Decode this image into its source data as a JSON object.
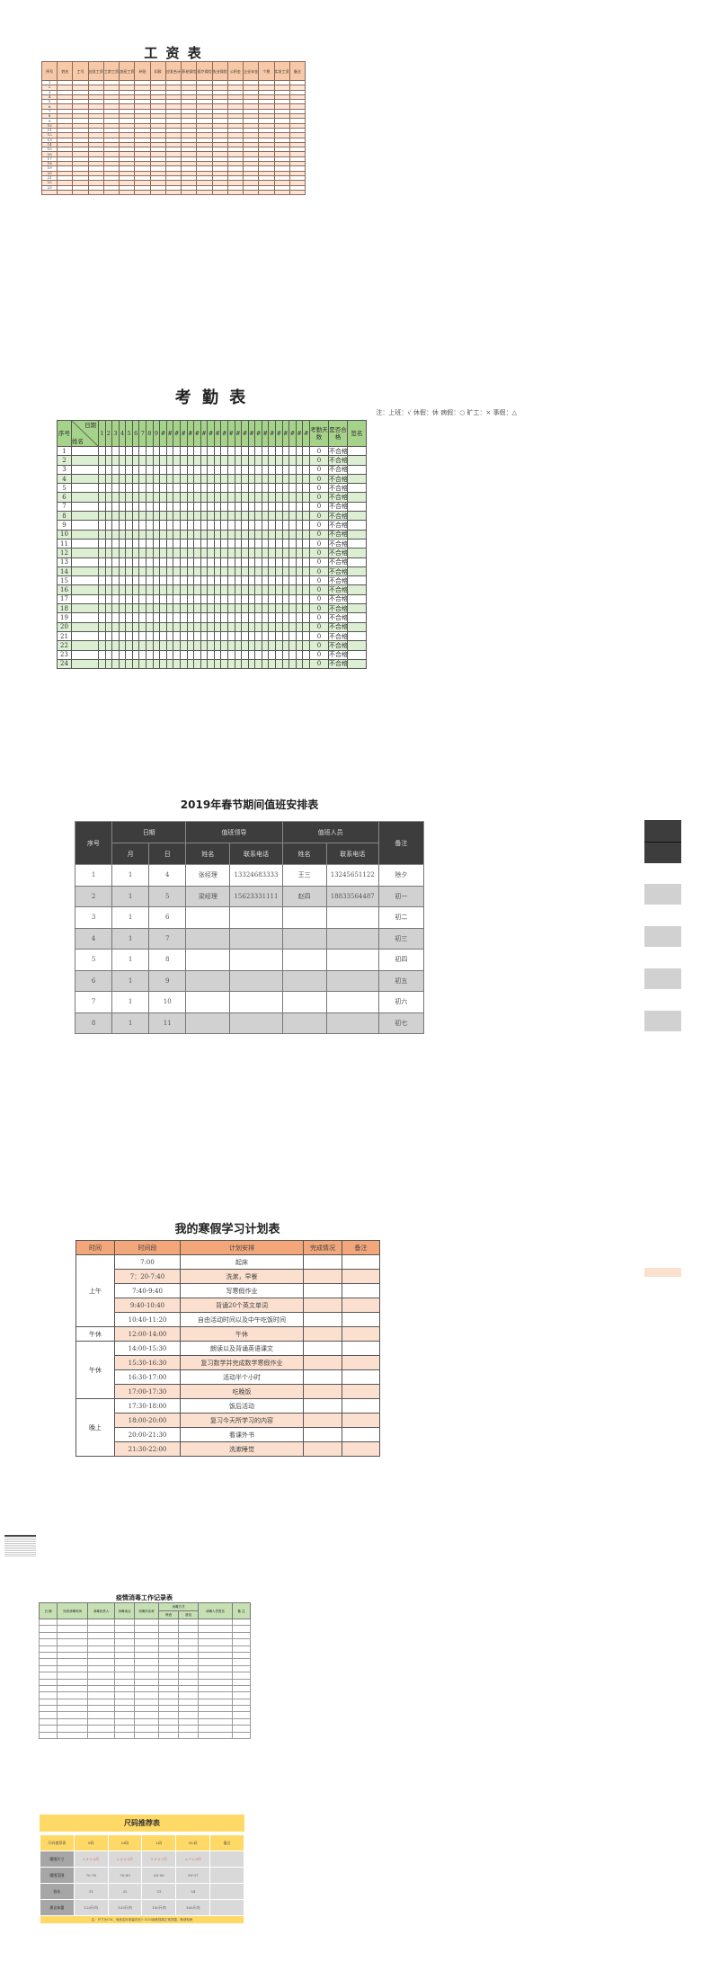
{
  "salary": {
    "title": "工 资 表",
    "headers": [
      "序号",
      "姓名",
      "工号",
      "应发工资",
      "工龄工资",
      "加班工资",
      "补贴",
      "扣款",
      "应发合计",
      "养老保险",
      "医疗保险",
      "失业保险",
      "公积金",
      "企业年金",
      "个税",
      "实发工资",
      "备注"
    ],
    "rows": [
      "1",
      "2",
      "3",
      "4",
      "5",
      "6",
      "7",
      "8",
      "9",
      "10",
      "11",
      "12",
      "13",
      "14",
      "15",
      "16",
      "17",
      "18",
      "19",
      "20",
      "21",
      "22",
      "23",
      ""
    ]
  },
  "attendance": {
    "title": "考 勤 表",
    "note": "注：上班：√ 休假：休 病假：○ 旷工：× 事假：△",
    "header_seq": "序号",
    "header_date": "日期",
    "header_name": "姓名",
    "days": [
      "1",
      "2",
      "3",
      "4",
      "5",
      "6",
      "7",
      "8",
      "9",
      "#",
      "#",
      "#",
      "#",
      "#",
      "#",
      "#",
      "#",
      "#",
      "#",
      "#",
      "#",
      "#",
      "#",
      "#",
      "#",
      "#",
      "#",
      "#",
      "#",
      "#",
      "#"
    ],
    "header_days_count": "考勤天数",
    "header_pass": "是否合格",
    "header_sign": "签名",
    "rows": [
      "1",
      "2",
      "3",
      "4",
      "5",
      "6",
      "7",
      "8",
      "9",
      "10",
      "11",
      "12",
      "13",
      "14",
      "15",
      "16",
      "17",
      "18",
      "19",
      "20",
      "21",
      "22",
      "23",
      "24"
    ],
    "days_count_value": "0",
    "pass_value": "不合格"
  },
  "duty": {
    "title": "2019年春节期间值班安排表",
    "headers": {
      "seq": "序号",
      "date": "日期",
      "leader": "值班领导",
      "staff": "值班人员",
      "note": "备注",
      "month": "月",
      "day": "日",
      "name": "姓名",
      "phone": "联系电话"
    },
    "rows": [
      [
        "1",
        "1",
        "4",
        "张经理",
        "13324683333",
        "王三",
        "13245651122",
        "除夕"
      ],
      [
        "2",
        "1",
        "5",
        "梁经理",
        "15623331111",
        "赵四",
        "18833564487",
        "初一"
      ],
      [
        "3",
        "1",
        "6",
        "",
        "",
        "",
        "",
        "初二"
      ],
      [
        "4",
        "1",
        "7",
        "",
        "",
        "",
        "",
        "初三"
      ],
      [
        "5",
        "1",
        "8",
        "",
        "",
        "",
        "",
        "初四"
      ],
      [
        "6",
        "1",
        "9",
        "",
        "",
        "",
        "",
        "初五"
      ],
      [
        "7",
        "1",
        "10",
        "",
        "",
        "",
        "",
        "初六"
      ],
      [
        "8",
        "1",
        "11",
        "",
        "",
        "",
        "",
        "初七"
      ]
    ]
  },
  "plan": {
    "title": "我的寒假学习计划表",
    "headers": [
      "时间",
      "时间段",
      "计划安排",
      "完成情况",
      "备注"
    ],
    "groups": [
      {
        "label": "上午",
        "rows": [
          [
            "7:00",
            "起床"
          ],
          [
            "7：20-7:40",
            "洗漱，早餐"
          ],
          [
            "7:40-9:40",
            "写寒假作业"
          ],
          [
            "9:40-10:40",
            "背诵20个英文单词"
          ],
          [
            "10:40-11:20",
            "自由活动时间以及中午吃饭时间"
          ]
        ]
      },
      {
        "label": "午休",
        "rows": [
          [
            "12:00-14:00",
            "午休"
          ]
        ]
      },
      {
        "label": "午休",
        "rows": [
          [
            "14:00-15:30",
            "朗读以及背诵英语课文"
          ],
          [
            "15:30-16:30",
            "复习数学并完成数学寒假作业"
          ],
          [
            "16:30-17:00",
            "活动半个小时"
          ],
          [
            "17:00-17:30",
            "吃晚饭"
          ]
        ]
      },
      {
        "label": "晚上",
        "rows": [
          [
            "17:30-18:00",
            "饭后活动"
          ],
          [
            "18:00-20:00",
            "复习今天所学习的内容"
          ],
          [
            "20:00-21:30",
            "看课外书"
          ],
          [
            "21:30-22:00",
            "洗漱睡觉"
          ]
        ]
      }
    ]
  },
  "disinfection": {
    "title": "疫情消毒工作记录表",
    "headers": [
      "日 期",
      "完成消毒时间",
      "消毒负责人",
      "消毒地点",
      "消毒剂名称",
      "消毒方式",
      "消毒人员签名",
      "备 注"
    ],
    "sub_headers": [
      "喷洒",
      "浸泡"
    ]
  },
  "size": {
    "title": "尺码推荐表",
    "headers": [
      "尺码推荐表",
      "S码",
      "M码",
      "L码",
      "XL码",
      "备注"
    ],
    "rows": [
      [
        "腰围尺寸",
        "2.1-2.3尺",
        "2.3-2.5尺",
        "2.5-2.7尺",
        "2.7-2.9尺",
        ""
      ],
      [
        "腰围范围",
        "70-76",
        "76-83",
        "83-90",
        "90-97",
        ""
      ],
      [
        "档长",
        "31",
        "32",
        "33",
        "34",
        ""
      ],
      [
        "建议体重",
        "120斤内",
        "135斤内",
        "150斤内",
        "165斤内",
        ""
      ]
    ],
    "note": "注：尺寸为CM，商品实际测量存在1-3CM误差视属正常范围，敬请知悉"
  },
  "colors": {
    "salary_header": "#f8c9a8",
    "attendance_header": "#a6d38a",
    "duty_header": "#3d3d3d",
    "plan_header": "#f2a679",
    "disinfection_header": "#c6e0b4",
    "size_header": "#ffd966"
  }
}
